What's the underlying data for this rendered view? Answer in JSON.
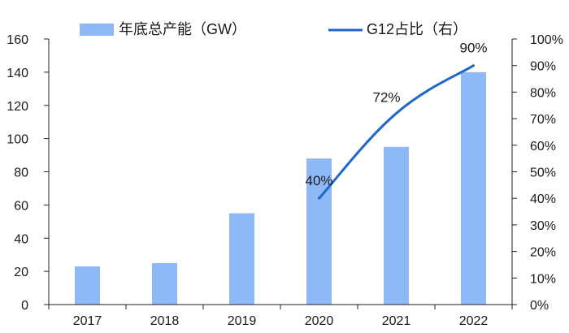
{
  "chart_data": {
    "type": "bar",
    "categories": [
      "2017",
      "2018",
      "2019",
      "2020",
      "2021",
      "2022"
    ],
    "series": [
      {
        "name": "年底总产能（GW）",
        "type": "bar",
        "axis": "left",
        "values": [
          23,
          25,
          55,
          88,
          95,
          140
        ],
        "color": "#8fb8f7"
      },
      {
        "name": "G12占比（右）",
        "type": "line",
        "axis": "right",
        "x": [
          "2020",
          "2021",
          "2022"
        ],
        "values": [
          40,
          72,
          90
        ],
        "data_labels": [
          "40%",
          "72%",
          "90%"
        ],
        "color": "#1f67c8"
      }
    ],
    "y_left": {
      "ylim": [
        0,
        160
      ],
      "ticks": [
        "0",
        "20",
        "40",
        "60",
        "80",
        "100",
        "120",
        "140",
        "160"
      ]
    },
    "y_right": {
      "ylim": [
        0,
        100
      ],
      "ticks": [
        "0%",
        "10%",
        "20%",
        "30%",
        "40%",
        "50%",
        "60%",
        "70%",
        "80%",
        "90%",
        "100%"
      ]
    },
    "grid": false,
    "legend": "top"
  }
}
